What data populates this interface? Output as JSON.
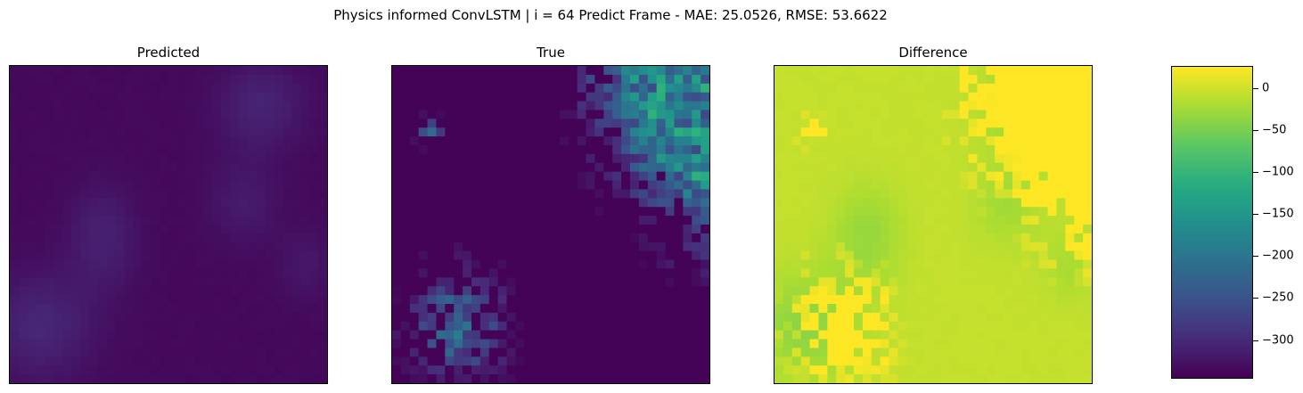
{
  "figure": {
    "title": "Physics informed ConvLSTM | i = 64 Predict Frame - MAE: 25.0526, RMSE: 53.6622"
  },
  "chart_data": {
    "type": "heatmap",
    "colormap": "viridis",
    "grid_size": [
      36,
      36
    ],
    "panels": [
      {
        "title": "Predicted",
        "value_range": [
          -340,
          -290
        ]
      },
      {
        "title": "True",
        "value_range": [
          -340,
          -120
        ]
      },
      {
        "title": "Difference",
        "value_range": [
          -260,
          25
        ]
      }
    ],
    "colorbar": {
      "vmin": -345,
      "vmax": 25,
      "ticks": [
        0,
        -50,
        -100,
        -150,
        -200,
        -250,
        -300
      ],
      "tick_labels": [
        "0",
        "−50",
        "−100",
        "−150",
        "−200",
        "−250",
        "−300"
      ]
    },
    "colors": {
      "viridis_low": "#440154",
      "viridis_mid": "#21918c",
      "viridis_high": "#fde725"
    }
  }
}
